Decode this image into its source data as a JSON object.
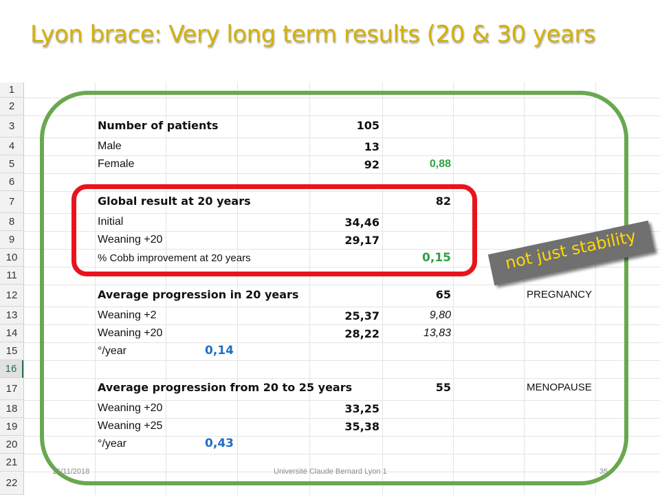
{
  "title": "Lyon brace: Very long term results (20 & 30 years",
  "row_numbers": [
    "1",
    "2",
    "3",
    "4",
    "5",
    "6",
    "7",
    "8",
    "9",
    "10",
    "11",
    "12",
    "13",
    "14",
    "15",
    "16",
    "17",
    "18",
    "19",
    "20",
    "21",
    "22"
  ],
  "rows": {
    "r3": {
      "label": "Number of patients",
      "value": "105"
    },
    "r4": {
      "label": "Male",
      "value": "13"
    },
    "r5": {
      "label": "Female",
      "value": "92",
      "ratio": "0,88"
    },
    "r7": {
      "label": "Global result at 20 years",
      "value": "82"
    },
    "r8": {
      "label": "Initial",
      "value": "34,46"
    },
    "r9": {
      "label": "Weaning +20",
      "value": "29,17"
    },
    "r10": {
      "label": "% Cobb improvement at 20 years",
      "value": "0,15"
    },
    "r12": {
      "label": "Average progression in 20 years",
      "value": "65",
      "note": "PREGNANCY"
    },
    "r13": {
      "label": "Weaning +2",
      "value": "25,37",
      "extra": "9,80"
    },
    "r14": {
      "label": "Weaning +20",
      "value": "28,22",
      "extra": "13,83"
    },
    "r15": {
      "label": "°/year",
      "rate": "0,14"
    },
    "r17": {
      "label": "Average progression from 20 to 25 years",
      "value": "55",
      "note": "MENOPAUSE"
    },
    "r18": {
      "label": "Weaning +20",
      "value": "33,25"
    },
    "r19": {
      "label": "Weaning +25",
      "value": "35,38"
    },
    "r20": {
      "label": "°/year",
      "rate": "0,43"
    }
  },
  "sticker": "not just stability",
  "footer": {
    "date": "16/11/2018",
    "institution": "Université Claude Bernard Lyon 1",
    "page": "35"
  },
  "colors": {
    "title": "#d4b106",
    "green_frame": "#6aa84f",
    "red_frame": "#e8141c",
    "green_value": "#2ea043",
    "blue_value": "#1f6fc4",
    "sticker_text": "#ffd800"
  }
}
